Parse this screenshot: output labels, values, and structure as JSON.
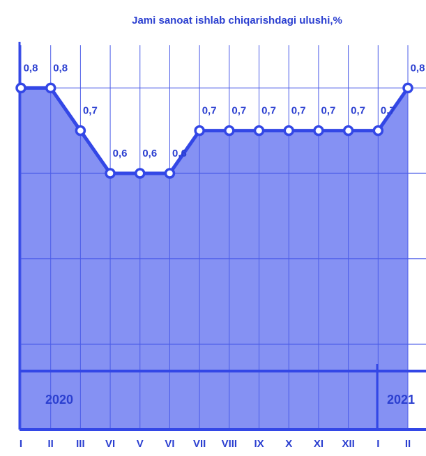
{
  "chart_data": {
    "type": "area",
    "title": "Jami sanoat ishlab chiqarishdagi ulushi,%",
    "categories": [
      "I",
      "II",
      "III",
      "VI",
      "V",
      "VI",
      "VII",
      "VIII",
      "IX",
      "X",
      "XI",
      "XII",
      "I",
      "II"
    ],
    "values": [
      0.8,
      0.8,
      0.7,
      0.6,
      0.6,
      0.6,
      0.7,
      0.7,
      0.7,
      0.7,
      0.7,
      0.7,
      0.7,
      0.8
    ],
    "value_labels": [
      "0,8",
      "0,8",
      "0,7",
      "0,6",
      "0,6",
      "0,6",
      "0,7",
      "0,7",
      "0,7",
      "0,7",
      "0,7",
      "0,7",
      "0,7",
      "0,8"
    ],
    "color": "#3347e6",
    "fill": "#8591f3",
    "ylim": [
      0,
      0.9
    ],
    "yticks": [
      0,
      0.2,
      0.4,
      0.6,
      0.8
    ],
    "grid": true,
    "annotations": [
      "2020",
      "2021"
    ]
  }
}
